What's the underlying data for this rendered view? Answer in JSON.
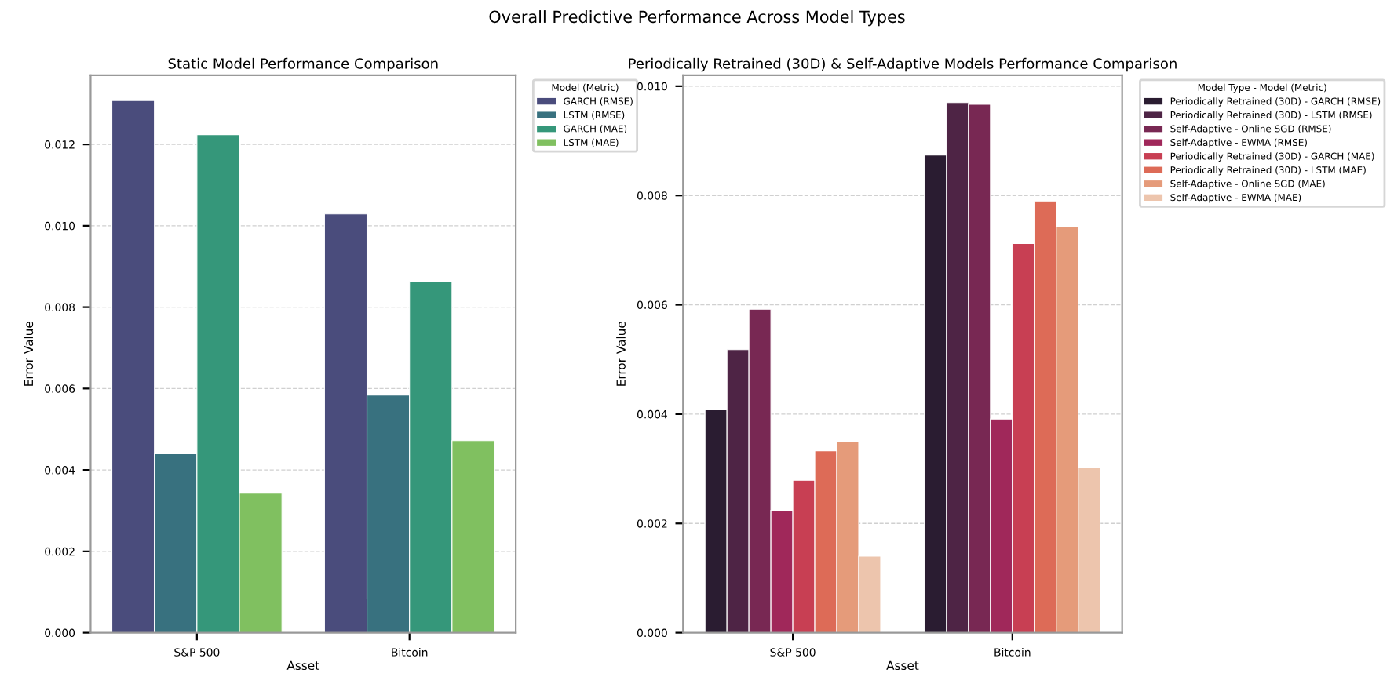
{
  "chart_data": [
    {
      "type": "bar",
      "title": "Static Model Performance Comparison",
      "xlabel": "Asset",
      "ylabel": "Error Value",
      "legend_title": "Model (Metric)",
      "annotations": [
        "Overall Predictive Performance Across Model Types"
      ],
      "categories": [
        "S&P 500",
        "Bitcoin"
      ],
      "series": [
        {
          "name": "GARCH (RMSE)",
          "color": "#4a4c7c",
          "values": [
            0.01308,
            0.01029
          ]
        },
        {
          "name": "LSTM (RMSE)",
          "color": "#38717f",
          "values": [
            0.0044,
            0.00584
          ]
        },
        {
          "name": "GARCH (MAE)",
          "color": "#35977a",
          "values": [
            0.01224,
            0.00864
          ]
        },
        {
          "name": "LSTM (MAE)",
          "color": "#80c060",
          "values": [
            0.00343,
            0.00472
          ]
        }
      ],
      "ylim": [
        0,
        0.0137
      ],
      "yticks": [
        {
          "value": 0,
          "label": "0.000"
        },
        {
          "value": 0.002,
          "label": "0.002"
        },
        {
          "value": 0.004,
          "label": "0.004"
        },
        {
          "value": 0.006,
          "label": "0.006"
        },
        {
          "value": 0.008,
          "label": "0.008"
        },
        {
          "value": 0.01,
          "label": "0.010"
        },
        {
          "value": 0.012,
          "label": "0.012"
        }
      ],
      "grid": "y",
      "legend": "right"
    },
    {
      "type": "bar",
      "title": "Periodically Retrained (30D) & Self-Adaptive Models Performance Comparison",
      "xlabel": "Asset",
      "ylabel": "Error Value",
      "legend_title": "Model Type - Model (Metric)",
      "categories": [
        "S&P 500",
        "Bitcoin"
      ],
      "series": [
        {
          "name": "Periodically Retrained (30D) - GARCH (RMSE)",
          "color": "#2a1c31",
          "values": [
            0.00408,
            0.00874
          ]
        },
        {
          "name": "Periodically Retrained (30D) - LSTM (RMSE)",
          "color": "#4e2445",
          "values": [
            0.00518,
            0.0097
          ]
        },
        {
          "name": "Self-Adaptive - Online SGD (RMSE)",
          "color": "#782853",
          "values": [
            0.00592,
            0.00967
          ]
        },
        {
          "name": "Self-Adaptive - EWMA (RMSE)",
          "color": "#a0285a",
          "values": [
            0.00224,
            0.00391
          ]
        },
        {
          "name": "Periodically Retrained (30D) - GARCH (MAE)",
          "color": "#c83f53",
          "values": [
            0.00279,
            0.00712
          ]
        },
        {
          "name": "Periodically Retrained (30D) - LSTM (MAE)",
          "color": "#dd6b57",
          "values": [
            0.00333,
            0.0079
          ]
        },
        {
          "name": "Self-Adaptive - Online SGD (MAE)",
          "color": "#e59b7a",
          "values": [
            0.00349,
            0.00743
          ]
        },
        {
          "name": "Self-Adaptive - EWMA (MAE)",
          "color": "#edc5ad",
          "values": [
            0.0014,
            0.00303
          ]
        }
      ],
      "ylim": [
        0,
        0.0102
      ],
      "yticks": [
        {
          "value": 0,
          "label": "0.000"
        },
        {
          "value": 0.002,
          "label": "0.002"
        },
        {
          "value": 0.004,
          "label": "0.004"
        },
        {
          "value": 0.006,
          "label": "0.006"
        },
        {
          "value": 0.008,
          "label": "0.008"
        },
        {
          "value": 0.01,
          "label": "0.010"
        }
      ],
      "grid": "y",
      "legend": "right"
    }
  ]
}
